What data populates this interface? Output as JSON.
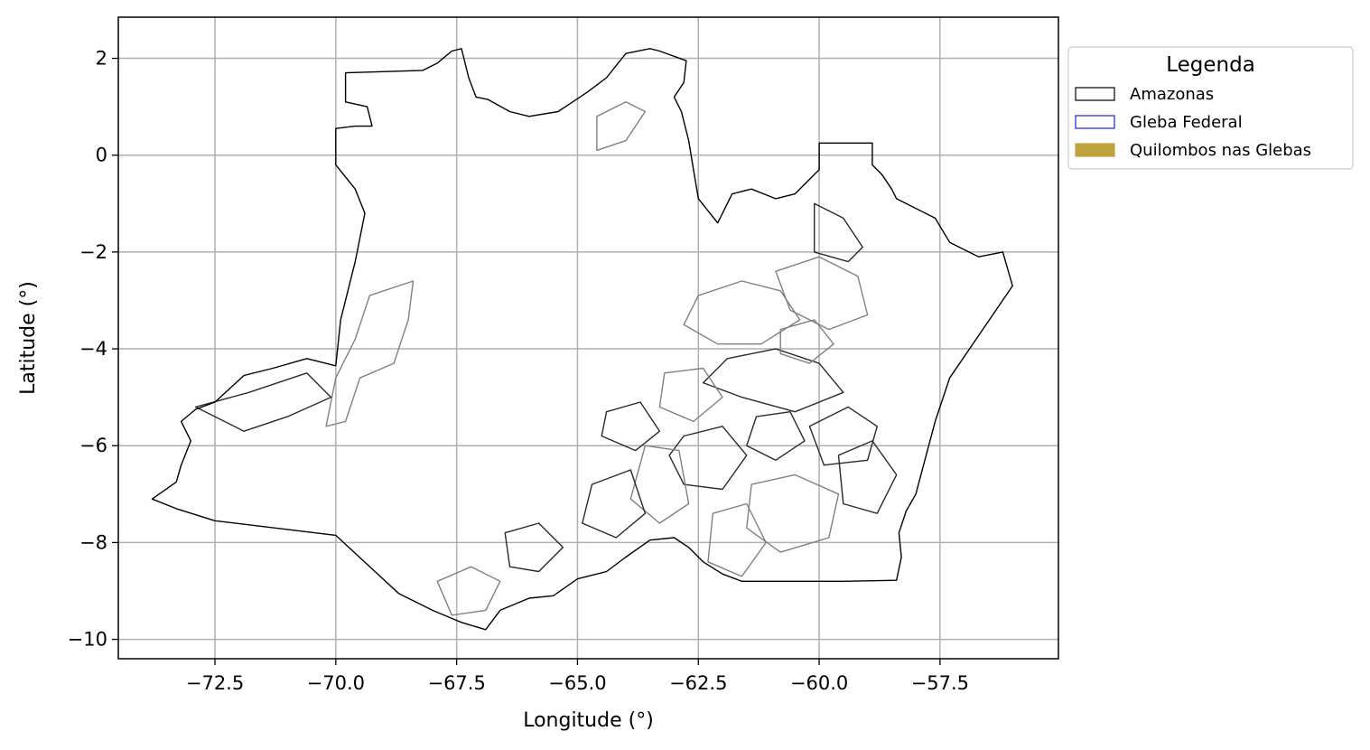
{
  "chart_data": {
    "type": "map",
    "xlabel": "Longitude (°)",
    "ylabel": "Latitude (°)",
    "xlim": [
      -74.5,
      -55.05
    ],
    "ylim": [
      -10.4,
      2.85
    ],
    "xticks": [
      -72.5,
      -70.0,
      -67.5,
      -65.0,
      -62.5,
      -60.0,
      -57.5
    ],
    "xtick_labels": [
      "−72.5",
      "−70.0",
      "−67.5",
      "−65.0",
      "−62.5",
      "−60.0",
      "−57.5"
    ],
    "yticks": [
      2,
      0,
      -2,
      -4,
      -6,
      -8,
      -10
    ],
    "ytick_labels": [
      "2",
      "0",
      "−2",
      "−4",
      "−6",
      "−8",
      "−10"
    ],
    "grid": true,
    "legend": {
      "title": "Legenda",
      "placement": "outside-upper-right",
      "entries": [
        {
          "label": "Amazonas",
          "edge": "#000000",
          "fill": "none"
        },
        {
          "label": "Gleba Federal",
          "edge": "#1f1fd6",
          "fill": "none"
        },
        {
          "label": "Quilombos nas Glebas",
          "edge": "#c0a23c",
          "fill": "#c0a23c"
        }
      ]
    },
    "colors": {
      "amazonas_outline": "#000000",
      "gleba_outline_dark": "#2a2a2a",
      "gleba_outline_light": "#808080",
      "grid": "#b0b0b0"
    },
    "amazonas_outline": [
      [
        -73.8,
        -7.1
      ],
      [
        -73.3,
        -7.3
      ],
      [
        -72.5,
        -7.55
      ],
      [
        -70.0,
        -7.85
      ],
      [
        -68.7,
        -9.05
      ],
      [
        -68.0,
        -9.4
      ],
      [
        -67.4,
        -9.65
      ],
      [
        -66.9,
        -9.8
      ],
      [
        -66.6,
        -9.4
      ],
      [
        -66.0,
        -9.15
      ],
      [
        -65.5,
        -9.1
      ],
      [
        -65.0,
        -8.75
      ],
      [
        -64.4,
        -8.6
      ],
      [
        -64.0,
        -8.3
      ],
      [
        -63.5,
        -7.95
      ],
      [
        -63.0,
        -7.9
      ],
      [
        -62.7,
        -8.1
      ],
      [
        -62.4,
        -8.4
      ],
      [
        -62.0,
        -8.65
      ],
      [
        -61.6,
        -8.8
      ],
      [
        -60.5,
        -8.8
      ],
      [
        -59.5,
        -8.8
      ],
      [
        -58.4,
        -8.78
      ],
      [
        -58.3,
        -8.3
      ],
      [
        -58.35,
        -7.8
      ],
      [
        -58.2,
        -7.35
      ],
      [
        -58.0,
        -7.0
      ],
      [
        -57.6,
        -5.5
      ],
      [
        -57.3,
        -4.6
      ],
      [
        -56.0,
        -2.7
      ],
      [
        -56.2,
        -2.0
      ],
      [
        -56.7,
        -2.1
      ],
      [
        -57.3,
        -1.8
      ],
      [
        -57.6,
        -1.3
      ],
      [
        -58.4,
        -0.9
      ],
      [
        -58.5,
        -0.7
      ],
      [
        -58.7,
        -0.4
      ],
      [
        -58.9,
        -0.2
      ],
      [
        -58.9,
        0.25
      ],
      [
        -60.0,
        0.25
      ],
      [
        -60.0,
        -0.3
      ],
      [
        -60.5,
        -0.8
      ],
      [
        -60.9,
        -0.9
      ],
      [
        -61.4,
        -0.7
      ],
      [
        -61.8,
        -0.8
      ],
      [
        -62.1,
        -1.4
      ],
      [
        -62.5,
        -0.9
      ],
      [
        -62.6,
        -0.3
      ],
      [
        -62.7,
        0.3
      ],
      [
        -62.85,
        0.9
      ],
      [
        -63.0,
        1.2
      ],
      [
        -62.8,
        1.5
      ],
      [
        -62.75,
        1.95
      ],
      [
        -63.3,
        2.15
      ],
      [
        -63.5,
        2.2
      ],
      [
        -64.0,
        2.1
      ],
      [
        -64.4,
        1.6
      ],
      [
        -64.8,
        1.3
      ],
      [
        -65.4,
        0.9
      ],
      [
        -66.0,
        0.8
      ],
      [
        -66.4,
        0.9
      ],
      [
        -66.85,
        1.15
      ],
      [
        -67.1,
        1.2
      ],
      [
        -67.25,
        1.6
      ],
      [
        -67.4,
        2.2
      ],
      [
        -67.6,
        2.15
      ],
      [
        -67.9,
        1.9
      ],
      [
        -68.2,
        1.75
      ],
      [
        -69.8,
        1.7
      ],
      [
        -69.8,
        1.1
      ],
      [
        -69.35,
        1.0
      ],
      [
        -69.25,
        0.6
      ],
      [
        -69.6,
        0.6
      ],
      [
        -70.0,
        0.55
      ],
      [
        -70.0,
        -0.2
      ],
      [
        -69.6,
        -0.7
      ],
      [
        -69.4,
        -1.2
      ],
      [
        -69.6,
        -2.2
      ],
      [
        -69.9,
        -3.4
      ],
      [
        -70.0,
        -4.35
      ],
      [
        -70.6,
        -4.2
      ],
      [
        -71.3,
        -4.4
      ],
      [
        -71.9,
        -4.55
      ],
      [
        -72.5,
        -5.1
      ],
      [
        -72.9,
        -5.25
      ],
      [
        -73.2,
        -5.5
      ],
      [
        -73.0,
        -5.9
      ],
      [
        -73.2,
        -6.4
      ],
      [
        -73.3,
        -6.75
      ],
      [
        -73.8,
        -7.1
      ]
    ],
    "gleba_outlines": [
      [
        [
          -69.3,
          -2.9
        ],
        [
          -68.4,
          -2.6
        ],
        [
          -68.5,
          -3.4
        ],
        [
          -68.8,
          -4.3
        ],
        [
          -69.5,
          -4.6
        ],
        [
          -69.8,
          -5.5
        ],
        [
          -70.2,
          -5.6
        ],
        [
          -70.0,
          -4.6
        ],
        [
          -69.6,
          -3.8
        ],
        [
          -69.3,
          -2.9
        ]
      ],
      [
        [
          -72.9,
          -5.2
        ],
        [
          -71.8,
          -4.9
        ],
        [
          -70.6,
          -4.5
        ],
        [
          -70.1,
          -5.0
        ],
        [
          -71.0,
          -5.4
        ],
        [
          -71.9,
          -5.7
        ],
        [
          -72.9,
          -5.2
        ]
      ],
      [
        [
          -64.6,
          0.8
        ],
        [
          -64.0,
          1.1
        ],
        [
          -63.6,
          0.9
        ],
        [
          -64.0,
          0.3
        ],
        [
          -64.6,
          0.1
        ],
        [
          -64.6,
          0.8
        ]
      ],
      [
        [
          -60.1,
          -1.0
        ],
        [
          -59.5,
          -1.3
        ],
        [
          -59.1,
          -1.9
        ],
        [
          -59.4,
          -2.2
        ],
        [
          -60.1,
          -2.0
        ],
        [
          -60.1,
          -1.0
        ]
      ],
      [
        [
          -62.5,
          -2.9
        ],
        [
          -61.6,
          -2.6
        ],
        [
          -60.8,
          -2.8
        ],
        [
          -60.4,
          -3.4
        ],
        [
          -61.2,
          -3.9
        ],
        [
          -62.1,
          -3.9
        ],
        [
          -62.8,
          -3.5
        ],
        [
          -62.5,
          -2.9
        ]
      ],
      [
        [
          -61.9,
          -4.2
        ],
        [
          -60.9,
          -4.0
        ],
        [
          -60.0,
          -4.3
        ],
        [
          -59.5,
          -4.9
        ],
        [
          -60.5,
          -5.3
        ],
        [
          -61.6,
          -5.0
        ],
        [
          -62.4,
          -4.7
        ],
        [
          -61.9,
          -4.2
        ]
      ],
      [
        [
          -60.9,
          -2.4
        ],
        [
          -60.0,
          -2.1
        ],
        [
          -59.2,
          -2.5
        ],
        [
          -59.0,
          -3.3
        ],
        [
          -59.8,
          -3.6
        ],
        [
          -60.6,
          -3.2
        ],
        [
          -60.9,
          -2.4
        ]
      ],
      [
        [
          -62.8,
          -5.8
        ],
        [
          -62.0,
          -5.6
        ],
        [
          -61.5,
          -6.2
        ],
        [
          -62.0,
          -6.9
        ],
        [
          -62.8,
          -6.8
        ],
        [
          -63.1,
          -6.2
        ],
        [
          -62.8,
          -5.8
        ]
      ],
      [
        [
          -63.6,
          -6.0
        ],
        [
          -62.9,
          -6.1
        ],
        [
          -62.7,
          -7.2
        ],
        [
          -63.3,
          -7.6
        ],
        [
          -63.9,
          -7.1
        ],
        [
          -63.6,
          -6.0
        ]
      ],
      [
        [
          -64.7,
          -6.8
        ],
        [
          -63.9,
          -6.5
        ],
        [
          -63.6,
          -7.4
        ],
        [
          -64.2,
          -7.9
        ],
        [
          -64.9,
          -7.6
        ],
        [
          -64.7,
          -6.8
        ]
      ],
      [
        [
          -61.4,
          -6.8
        ],
        [
          -60.5,
          -6.6
        ],
        [
          -59.6,
          -7.0
        ],
        [
          -59.8,
          -7.9
        ],
        [
          -60.8,
          -8.2
        ],
        [
          -61.5,
          -7.7
        ],
        [
          -61.4,
          -6.8
        ]
      ],
      [
        [
          -59.6,
          -6.2
        ],
        [
          -58.9,
          -5.9
        ],
        [
          -58.4,
          -6.6
        ],
        [
          -58.8,
          -7.4
        ],
        [
          -59.5,
          -7.2
        ],
        [
          -59.6,
          -6.2
        ]
      ],
      [
        [
          -62.2,
          -7.4
        ],
        [
          -61.5,
          -7.2
        ],
        [
          -61.1,
          -8.0
        ],
        [
          -61.6,
          -8.7
        ],
        [
          -62.3,
          -8.4
        ],
        [
          -62.2,
          -7.4
        ]
      ],
      [
        [
          -60.2,
          -5.6
        ],
        [
          -59.4,
          -5.2
        ],
        [
          -58.8,
          -5.6
        ],
        [
          -59.0,
          -6.3
        ],
        [
          -59.9,
          -6.4
        ],
        [
          -60.2,
          -5.6
        ]
      ],
      [
        [
          -67.9,
          -8.8
        ],
        [
          -67.2,
          -8.5
        ],
        [
          -66.6,
          -8.8
        ],
        [
          -66.9,
          -9.4
        ],
        [
          -67.6,
          -9.5
        ],
        [
          -67.9,
          -8.8
        ]
      ],
      [
        [
          -66.5,
          -7.8
        ],
        [
          -65.8,
          -7.6
        ],
        [
          -65.3,
          -8.1
        ],
        [
          -65.8,
          -8.6
        ],
        [
          -66.4,
          -8.5
        ],
        [
          -66.5,
          -7.8
        ]
      ],
      [
        [
          -60.8,
          -3.6
        ],
        [
          -60.1,
          -3.4
        ],
        [
          -59.7,
          -3.9
        ],
        [
          -60.2,
          -4.3
        ],
        [
          -60.8,
          -4.1
        ],
        [
          -60.8,
          -3.6
        ]
      ],
      [
        [
          -61.3,
          -5.4
        ],
        [
          -60.6,
          -5.3
        ],
        [
          -60.3,
          -5.9
        ],
        [
          -60.9,
          -6.3
        ],
        [
          -61.5,
          -6.0
        ],
        [
          -61.3,
          -5.4
        ]
      ],
      [
        [
          -63.2,
          -4.5
        ],
        [
          -62.4,
          -4.4
        ],
        [
          -62.0,
          -5.0
        ],
        [
          -62.6,
          -5.5
        ],
        [
          -63.3,
          -5.2
        ],
        [
          -63.2,
          -4.5
        ]
      ],
      [
        [
          -64.4,
          -5.3
        ],
        [
          -63.7,
          -5.1
        ],
        [
          -63.3,
          -5.7
        ],
        [
          -63.8,
          -6.1
        ],
        [
          -64.5,
          -5.8
        ],
        [
          -64.4,
          -5.3
        ]
      ]
    ]
  }
}
